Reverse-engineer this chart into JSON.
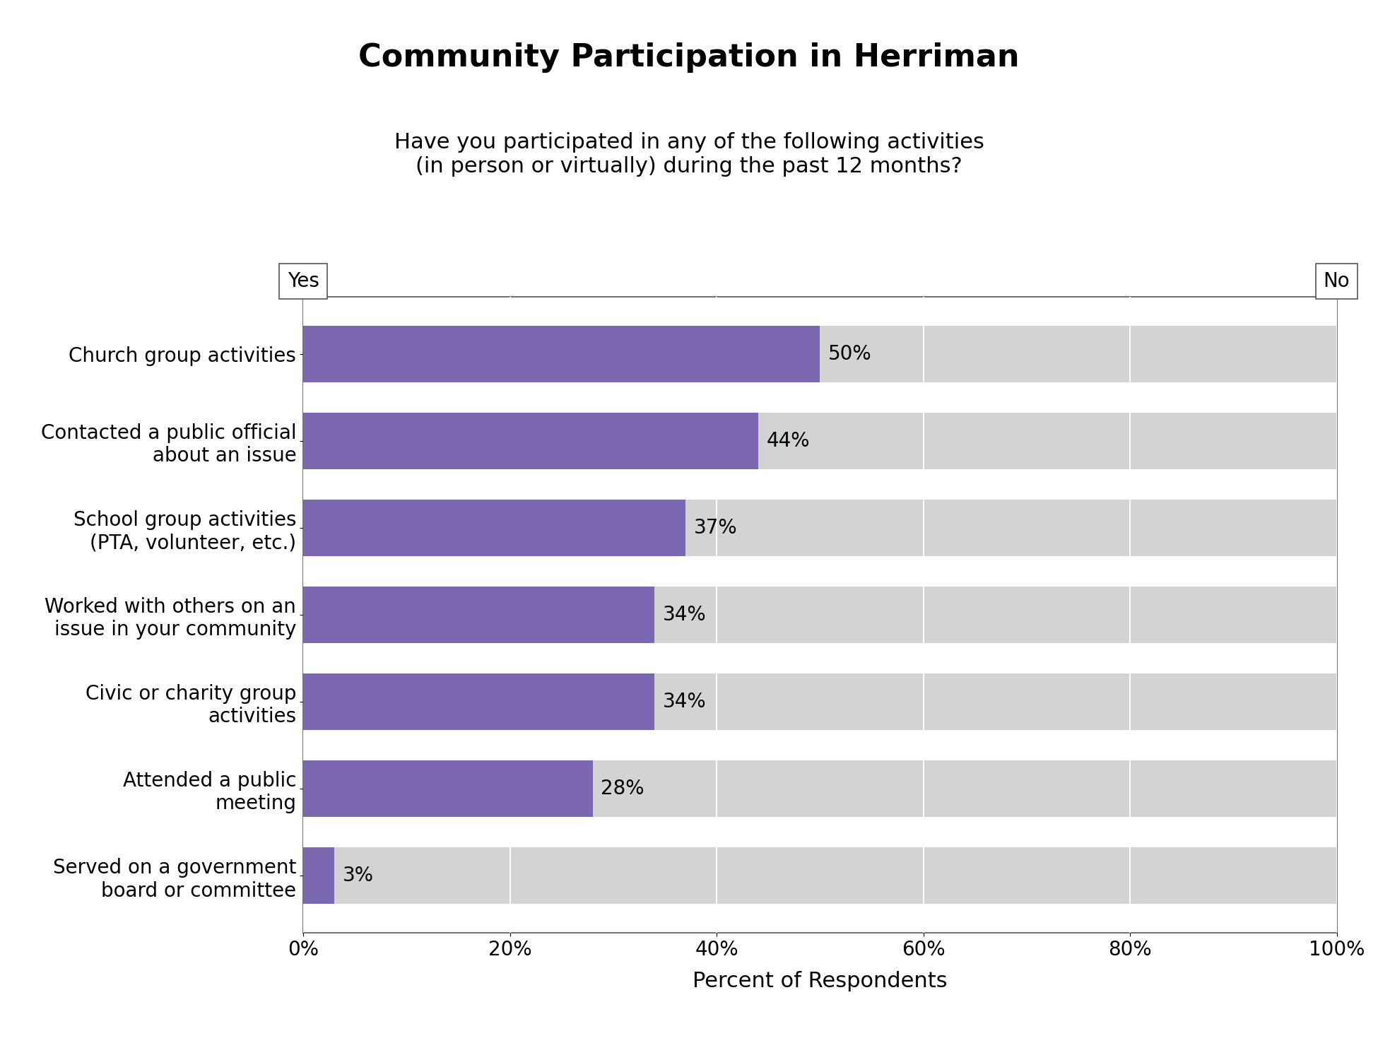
{
  "title": "Community Participation in Herriman",
  "subtitle": "Have you participated in any of the following activities\n(in person or virtually) during the past 12 months?",
  "categories": [
    "Church group activities",
    "Contacted a public official\nabout an issue",
    "School group activities\n(PTA, volunteer, etc.)",
    "Worked with others on an\nissue in your community",
    "Civic or charity group\nactivities",
    "Attended a public\nmeeting",
    "Served on a government\nboard or committee"
  ],
  "yes_values": [
    50,
    44,
    37,
    34,
    34,
    28,
    3
  ],
  "bar_color_yes": "#7B68B0",
  "bar_color_no": "#D3D3D3",
  "title_fontsize": 32,
  "subtitle_fontsize": 22,
  "label_fontsize": 20,
  "tick_fontsize": 20,
  "annotation_fontsize": 20,
  "xlabel": "Percent of Respondents",
  "yes_label": "Yes",
  "no_label": "No",
  "xlim": [
    0,
    100
  ],
  "xticks": [
    0,
    20,
    40,
    60,
    80,
    100
  ],
  "xtick_labels": [
    "0%",
    "20%",
    "40%",
    "60%",
    "80%",
    "100%"
  ]
}
